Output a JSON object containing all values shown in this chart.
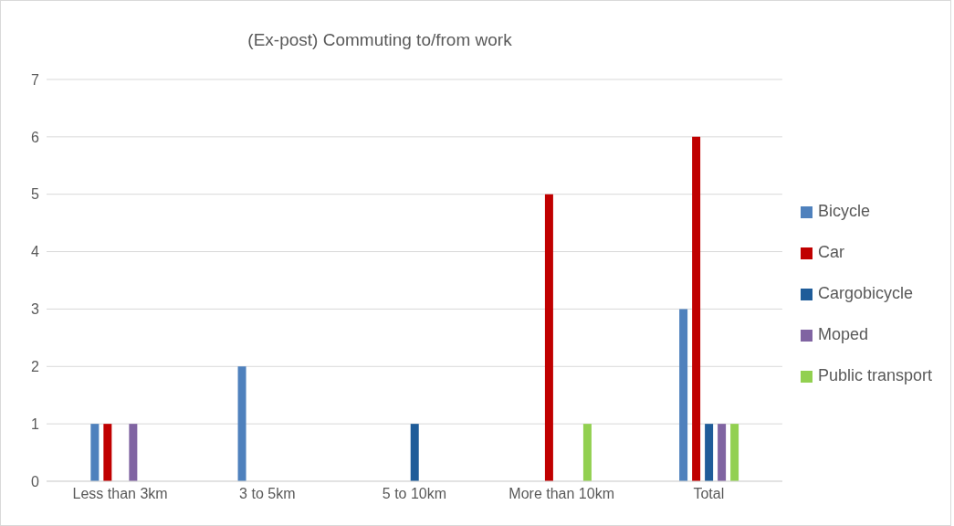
{
  "chart_data": {
    "type": "bar",
    "title": "(Ex-post) Commuting to/from work",
    "categories": [
      "Less than 3km",
      "3 to 5km",
      "5 to 10km",
      "More than 10km",
      "Total"
    ],
    "series": [
      {
        "name": "Bicycle",
        "color": "#4f81bd",
        "values": [
          1,
          2,
          0,
          0,
          3
        ]
      },
      {
        "name": "Car",
        "color": "#c00000",
        "values": [
          1,
          0,
          0,
          5,
          6
        ]
      },
      {
        "name": "Cargobicycle",
        "color": "#1f5c99",
        "values": [
          0,
          0,
          1,
          0,
          1
        ]
      },
      {
        "name": "Moped",
        "color": "#8064a2",
        "values": [
          1,
          0,
          0,
          0,
          1
        ]
      },
      {
        "name": "Public transport",
        "color": "#92d050",
        "values": [
          0,
          0,
          0,
          1,
          1
        ]
      }
    ],
    "ylim": [
      0,
      7
    ],
    "yticks": [
      0,
      1,
      2,
      3,
      4,
      5,
      6,
      7
    ],
    "grid": "y",
    "legend": "right"
  }
}
